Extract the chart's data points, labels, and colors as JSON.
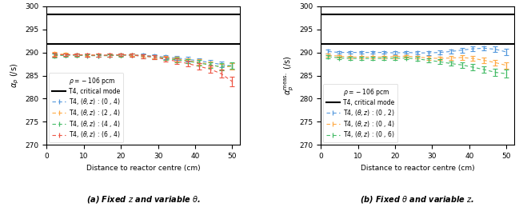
{
  "x_values": [
    2,
    5,
    8,
    11,
    14,
    17,
    20,
    23,
    26,
    29,
    32,
    35,
    38,
    41,
    44,
    47,
    50
  ],
  "hline1": 291.8,
  "hline2": 298.3,
  "ylim": [
    270,
    300
  ],
  "xlim": [
    0,
    52
  ],
  "xlabel": "Distance to reactor centre (cm)",
  "ylabel_left": "$\\alpha_p$ (/s)",
  "ylabel_right": "$\\alpha_p^{\\mathrm{meas.}}$ (/s)",
  "rho_text": "$\\rho = -106$ pcm",
  "critical_label": "T4, critical mode",
  "caption_left": "(a) Fixed $z$ and variable $\\theta$.",
  "caption_right": "(b) Fixed $\\theta$ and variable $z$.",
  "left_series": [
    {
      "label": "T4, $(\\theta$ , z) : (0 , 4)",
      "color": "#5599dd",
      "values": [
        289.4,
        289.5,
        289.5,
        289.4,
        289.3,
        289.4,
        289.5,
        289.5,
        289.4,
        289.2,
        289.0,
        288.8,
        288.5,
        288.2,
        287.8,
        287.4,
        287.0
      ],
      "errors": [
        0.4,
        0.3,
        0.3,
        0.3,
        0.3,
        0.3,
        0.3,
        0.3,
        0.3,
        0.4,
        0.4,
        0.4,
        0.5,
        0.5,
        0.6,
        0.6,
        0.7
      ]
    },
    {
      "label": "T4, $(\\theta$ , z) : (2 , 4)",
      "color": "#ffaa44",
      "values": [
        289.7,
        289.6,
        289.5,
        289.5,
        289.4,
        289.4,
        289.5,
        289.5,
        289.3,
        289.1,
        288.8,
        288.6,
        288.2,
        287.9,
        287.4,
        286.8,
        287.0
      ],
      "errors": [
        0.4,
        0.3,
        0.3,
        0.3,
        0.3,
        0.3,
        0.3,
        0.3,
        0.3,
        0.4,
        0.4,
        0.5,
        0.5,
        0.6,
        0.6,
        0.7,
        0.7
      ]
    },
    {
      "label": "T4, $(\\theta$ , z) : (4 , 4)",
      "color": "#44bb66",
      "values": [
        289.3,
        289.4,
        289.4,
        289.3,
        289.3,
        289.3,
        289.4,
        289.4,
        289.2,
        289.0,
        288.7,
        288.4,
        288.1,
        287.7,
        287.3,
        286.9,
        287.2
      ],
      "errors": [
        0.4,
        0.3,
        0.3,
        0.3,
        0.3,
        0.3,
        0.3,
        0.3,
        0.4,
        0.4,
        0.4,
        0.5,
        0.5,
        0.6,
        0.6,
        0.7,
        0.7
      ]
    },
    {
      "label": "T4, $(\\theta$ , z) : (6 , 4)",
      "color": "#ee5544",
      "values": [
        289.5,
        289.5,
        289.5,
        289.4,
        289.4,
        289.4,
        289.5,
        289.4,
        289.2,
        289.0,
        288.5,
        288.1,
        287.6,
        287.0,
        286.4,
        285.4,
        283.7
      ],
      "errors": [
        0.4,
        0.3,
        0.3,
        0.3,
        0.3,
        0.3,
        0.3,
        0.4,
        0.4,
        0.4,
        0.5,
        0.6,
        0.6,
        0.7,
        0.8,
        0.9,
        1.0
      ]
    }
  ],
  "right_series": [
    {
      "label": "T4, $(\\theta$ , z) : (0 , 2)",
      "color": "#5599dd",
      "values": [
        290.2,
        290.0,
        290.0,
        290.0,
        290.0,
        290.0,
        289.9,
        290.0,
        289.9,
        289.9,
        290.0,
        290.2,
        290.5,
        290.8,
        290.9,
        290.7,
        290.1
      ],
      "errors": [
        0.4,
        0.3,
        0.3,
        0.3,
        0.3,
        0.3,
        0.3,
        0.3,
        0.3,
        0.4,
        0.4,
        0.4,
        0.5,
        0.5,
        0.5,
        0.6,
        0.7
      ]
    },
    {
      "label": "T4, $(\\theta$ , z) : (0 , 4)",
      "color": "#ffaa44",
      "values": [
        289.4,
        289.2,
        289.0,
        289.0,
        289.0,
        289.0,
        289.1,
        289.2,
        289.0,
        288.8,
        288.7,
        288.8,
        288.9,
        288.7,
        288.3,
        287.8,
        287.2
      ],
      "errors": [
        0.4,
        0.3,
        0.3,
        0.3,
        0.3,
        0.3,
        0.3,
        0.3,
        0.3,
        0.4,
        0.4,
        0.4,
        0.5,
        0.5,
        0.6,
        0.6,
        0.7
      ]
    },
    {
      "label": "T4, $(\\theta$ , z) : (0 , 6)",
      "color": "#44bb66",
      "values": [
        289.1,
        288.8,
        288.7,
        288.7,
        288.7,
        288.7,
        288.7,
        288.8,
        288.6,
        288.3,
        288.0,
        287.6,
        287.3,
        286.8,
        286.3,
        285.7,
        285.4
      ],
      "errors": [
        0.4,
        0.3,
        0.3,
        0.3,
        0.3,
        0.3,
        0.3,
        0.3,
        0.4,
        0.4,
        0.5,
        0.5,
        0.6,
        0.7,
        0.7,
        0.8,
        0.9
      ]
    }
  ]
}
